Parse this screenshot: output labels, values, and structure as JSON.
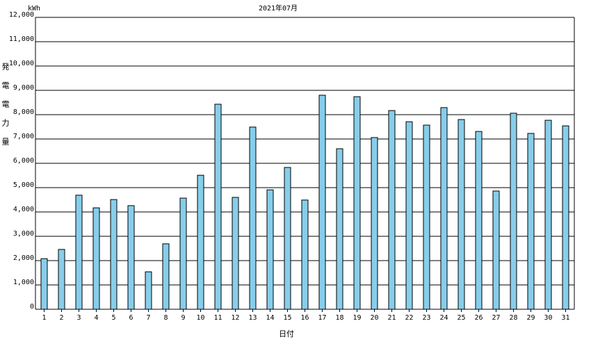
{
  "chart_data": {
    "type": "bar",
    "title": "2021年07月",
    "y_unit": "kWh",
    "y_label": "発電電力量",
    "x_label": "日付",
    "categories": [
      "1",
      "2",
      "3",
      "4",
      "5",
      "6",
      "7",
      "8",
      "9",
      "10",
      "11",
      "12",
      "13",
      "14",
      "15",
      "16",
      "17",
      "18",
      "19",
      "20",
      "21",
      "22",
      "23",
      "24",
      "25",
      "26",
      "27",
      "28",
      "29",
      "30",
      "31"
    ],
    "values": [
      2080,
      2460,
      4690,
      4170,
      4510,
      4260,
      1540,
      2690,
      4570,
      5510,
      8430,
      4600,
      7490,
      4910,
      5830,
      4490,
      8800,
      6600,
      8740,
      7060,
      8170,
      7710,
      7570,
      8290,
      7800,
      7310,
      4860,
      8060,
      7230,
      7770,
      7540
    ],
    "color": "#87ceeb",
    "ylim": [
      0,
      12000
    ],
    "yticks": [
      0,
      {
        "value": 1000,
        "label": "1,000"
      },
      {
        "value": 2000,
        "label": "2,000"
      },
      {
        "value": 3000,
        "label": "3,000"
      },
      {
        "value": 4000,
        "label": "4,000"
      },
      {
        "value": 5000,
        "label": "5,000"
      },
      {
        "value": 6000,
        "label": "6,000"
      },
      {
        "value": 7000,
        "label": "7,000"
      },
      {
        "value": 8000,
        "label": "8,000"
      },
      {
        "value": 9000,
        "label": "9,000"
      },
      {
        "value": 10000,
        "label": "10,000"
      },
      {
        "value": 11000,
        "label": "11,000"
      },
      {
        "value": 12000,
        "label": "12,000"
      }
    ],
    "grid": true
  }
}
